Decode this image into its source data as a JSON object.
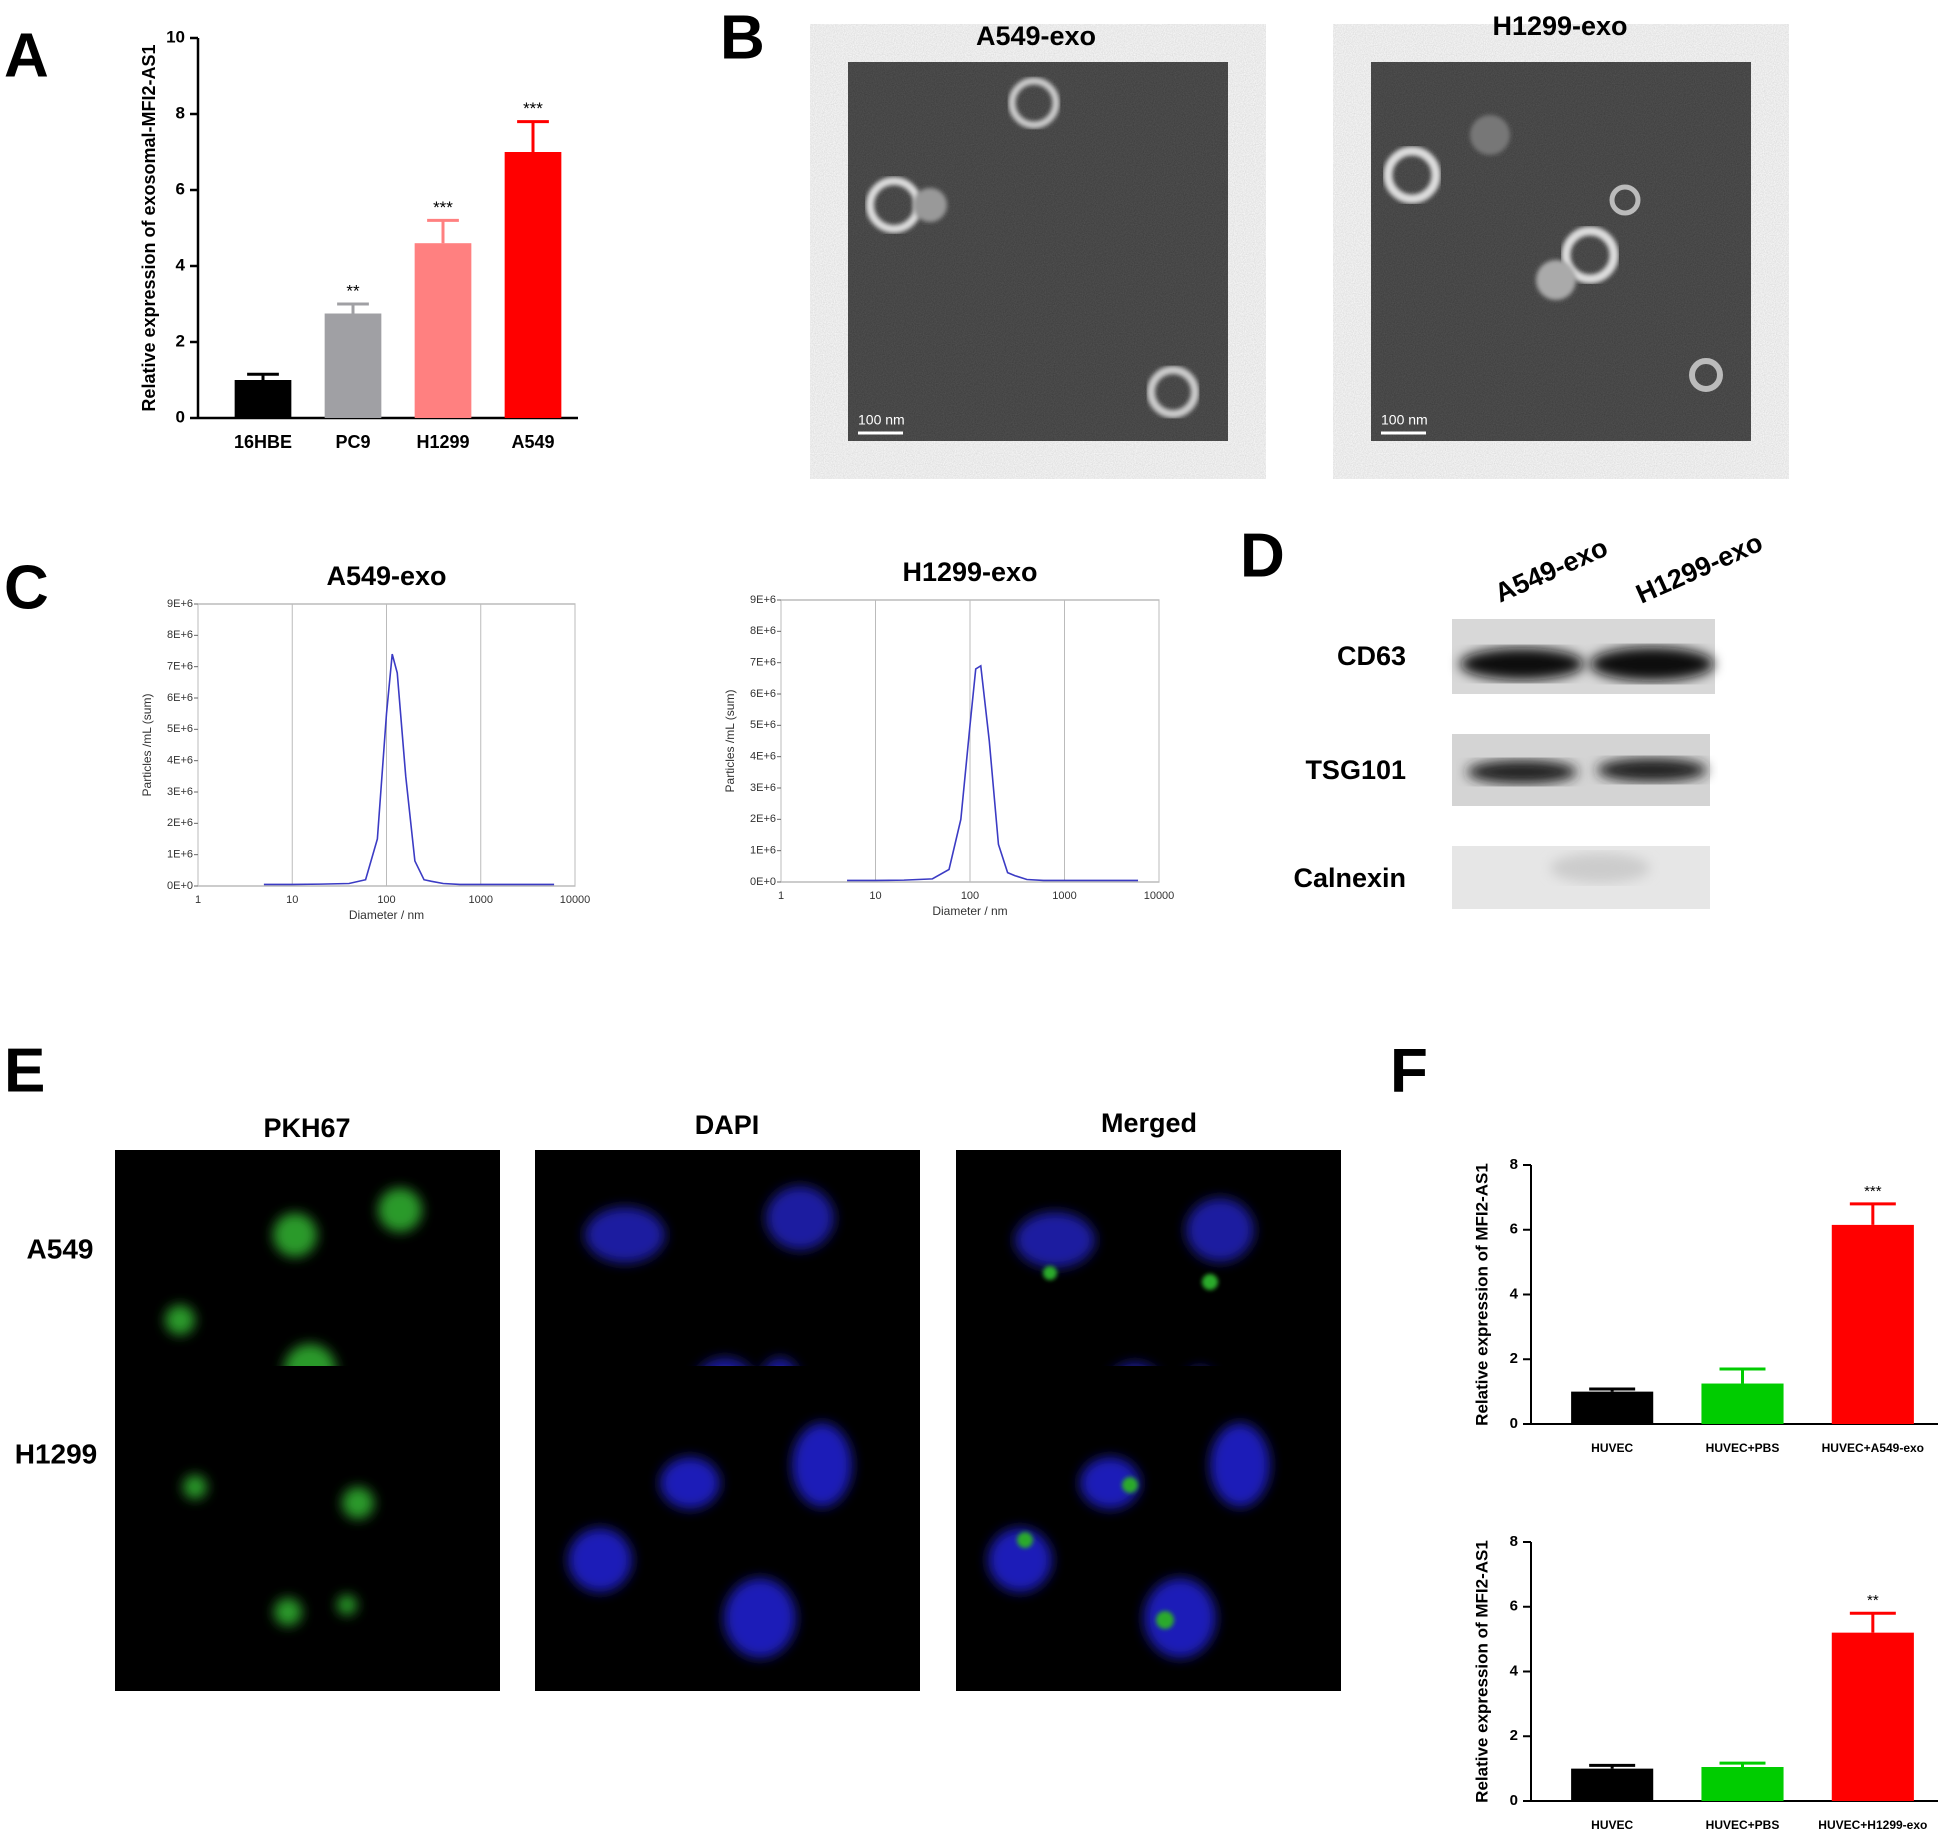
{
  "panel_labels": [
    "A",
    "B",
    "C",
    "D",
    "E",
    "F"
  ],
  "tem": {
    "images": [
      {
        "title": "A549-exo",
        "scale_bar": "100 nm"
      },
      {
        "title": "H1299-exo",
        "scale_bar": "100 nm"
      }
    ]
  },
  "western_blot": {
    "lanes": [
      "A549-exo",
      "H1299-exo"
    ],
    "proteins": [
      "CD63",
      "TSG101",
      "Calnexin"
    ]
  },
  "fluorescence": {
    "columns": [
      "PKH67",
      "DAPI",
      "Merged"
    ],
    "rows": [
      "A549",
      "H1299"
    ]
  },
  "chart_data": [
    {
      "type": "bar",
      "y_label": "Relative expression of exosomal-MFI2-AS1",
      "categories": [
        "16HBE",
        "PC9",
        "H1299",
        "A549"
      ],
      "values": [
        1.0,
        2.75,
        4.6,
        7.0
      ],
      "errors": [
        0.15,
        0.25,
        0.6,
        0.8
      ],
      "annotations": [
        null,
        "**",
        "***",
        "***"
      ],
      "colors": [
        "#000000",
        "#a0a0a4",
        "#ff8080",
        "#ff0000"
      ],
      "ylim": [
        0,
        10
      ],
      "yticks": [
        0,
        2,
        4,
        6,
        8,
        10
      ]
    },
    {
      "type": "line",
      "title": "A549-exo",
      "x_label": "Diameter / nm",
      "y_label": "Particles /mL (sum)",
      "x": [
        5,
        10,
        20,
        40,
        60,
        80,
        100,
        115,
        130,
        160,
        200,
        250,
        300,
        400,
        600,
        1000,
        3000,
        6000
      ],
      "values": [
        50000,
        50000,
        60000,
        80000,
        200000,
        1500000,
        5500000,
        7400000,
        6800000,
        3500000,
        800000,
        200000,
        150000,
        80000,
        50000,
        50000,
        50000,
        50000
      ],
      "color": "#3b3bc4",
      "xlog": true,
      "xlim": [
        1,
        10000
      ],
      "xticks": [
        1,
        10,
        100,
        1000,
        10000
      ],
      "ylim": [
        0,
        9000000
      ],
      "yticks": [
        {
          "value": 0,
          "label": "0E+0"
        },
        {
          "value": 1000000,
          "label": "1E+6"
        },
        {
          "value": 2000000,
          "label": "2E+6"
        },
        {
          "value": 3000000,
          "label": "3E+6"
        },
        {
          "value": 4000000,
          "label": "4E+6"
        },
        {
          "value": 5000000,
          "label": "5E+6"
        },
        {
          "value": 6000000,
          "label": "6E+6"
        },
        {
          "value": 7000000,
          "label": "7E+6"
        },
        {
          "value": 8000000,
          "label": "8E+6"
        },
        {
          "value": 9000000,
          "label": "9E+6"
        }
      ],
      "grid": true
    },
    {
      "type": "line",
      "title": "H1299-exo",
      "x_label": "Diameter / nm",
      "y_label": "Particles /mL (sum)",
      "x": [
        5,
        10,
        20,
        40,
        60,
        80,
        100,
        115,
        130,
        160,
        200,
        250,
        300,
        400,
        600,
        1000,
        3000,
        6000
      ],
      "values": [
        50000,
        50000,
        60000,
        100000,
        400000,
        2000000,
        5000000,
        6800000,
        6900000,
        4500000,
        1200000,
        300000,
        200000,
        80000,
        50000,
        50000,
        50000,
        50000
      ],
      "color": "#3b3bc4",
      "xlog": true,
      "xlim": [
        1,
        10000
      ],
      "xticks": [
        1,
        10,
        100,
        1000,
        10000
      ],
      "ylim": [
        0,
        9000000
      ],
      "yticks": [
        {
          "value": 0,
          "label": "0E+0"
        },
        {
          "value": 1000000,
          "label": "1E+6"
        },
        {
          "value": 2000000,
          "label": "2E+6"
        },
        {
          "value": 3000000,
          "label": "3E+6"
        },
        {
          "value": 4000000,
          "label": "4E+6"
        },
        {
          "value": 5000000,
          "label": "5E+6"
        },
        {
          "value": 6000000,
          "label": "6E+6"
        },
        {
          "value": 7000000,
          "label": "7E+6"
        },
        {
          "value": 8000000,
          "label": "8E+6"
        },
        {
          "value": 9000000,
          "label": "9E+6"
        }
      ],
      "grid": true
    },
    {
      "type": "bar",
      "y_label": "Relative expression of MFI2-AS1",
      "categories": [
        "HUVEC",
        "HUVEC+PBS",
        "HUVEC+A549-exo"
      ],
      "values": [
        1.0,
        1.25,
        6.15
      ],
      "errors": [
        0.08,
        0.45,
        0.65
      ],
      "annotations": [
        null,
        null,
        "***"
      ],
      "colors": [
        "#000000",
        "#00cc00",
        "#ff0000"
      ],
      "ylim": [
        0,
        8
      ],
      "yticks": [
        0,
        2,
        4,
        6,
        8
      ]
    },
    {
      "type": "bar",
      "y_label": "Relative expression of MFI2-AS1",
      "categories": [
        "HUVEC",
        "HUVEC+PBS",
        "HUVEC+H1299-exo"
      ],
      "values": [
        1.0,
        1.05,
        5.2
      ],
      "errors": [
        0.1,
        0.12,
        0.6
      ],
      "annotations": [
        null,
        null,
        "**"
      ],
      "colors": [
        "#000000",
        "#00cc00",
        "#ff0000"
      ],
      "ylim": [
        0,
        8
      ],
      "yticks": [
        0,
        2,
        4,
        6,
        8
      ]
    }
  ]
}
